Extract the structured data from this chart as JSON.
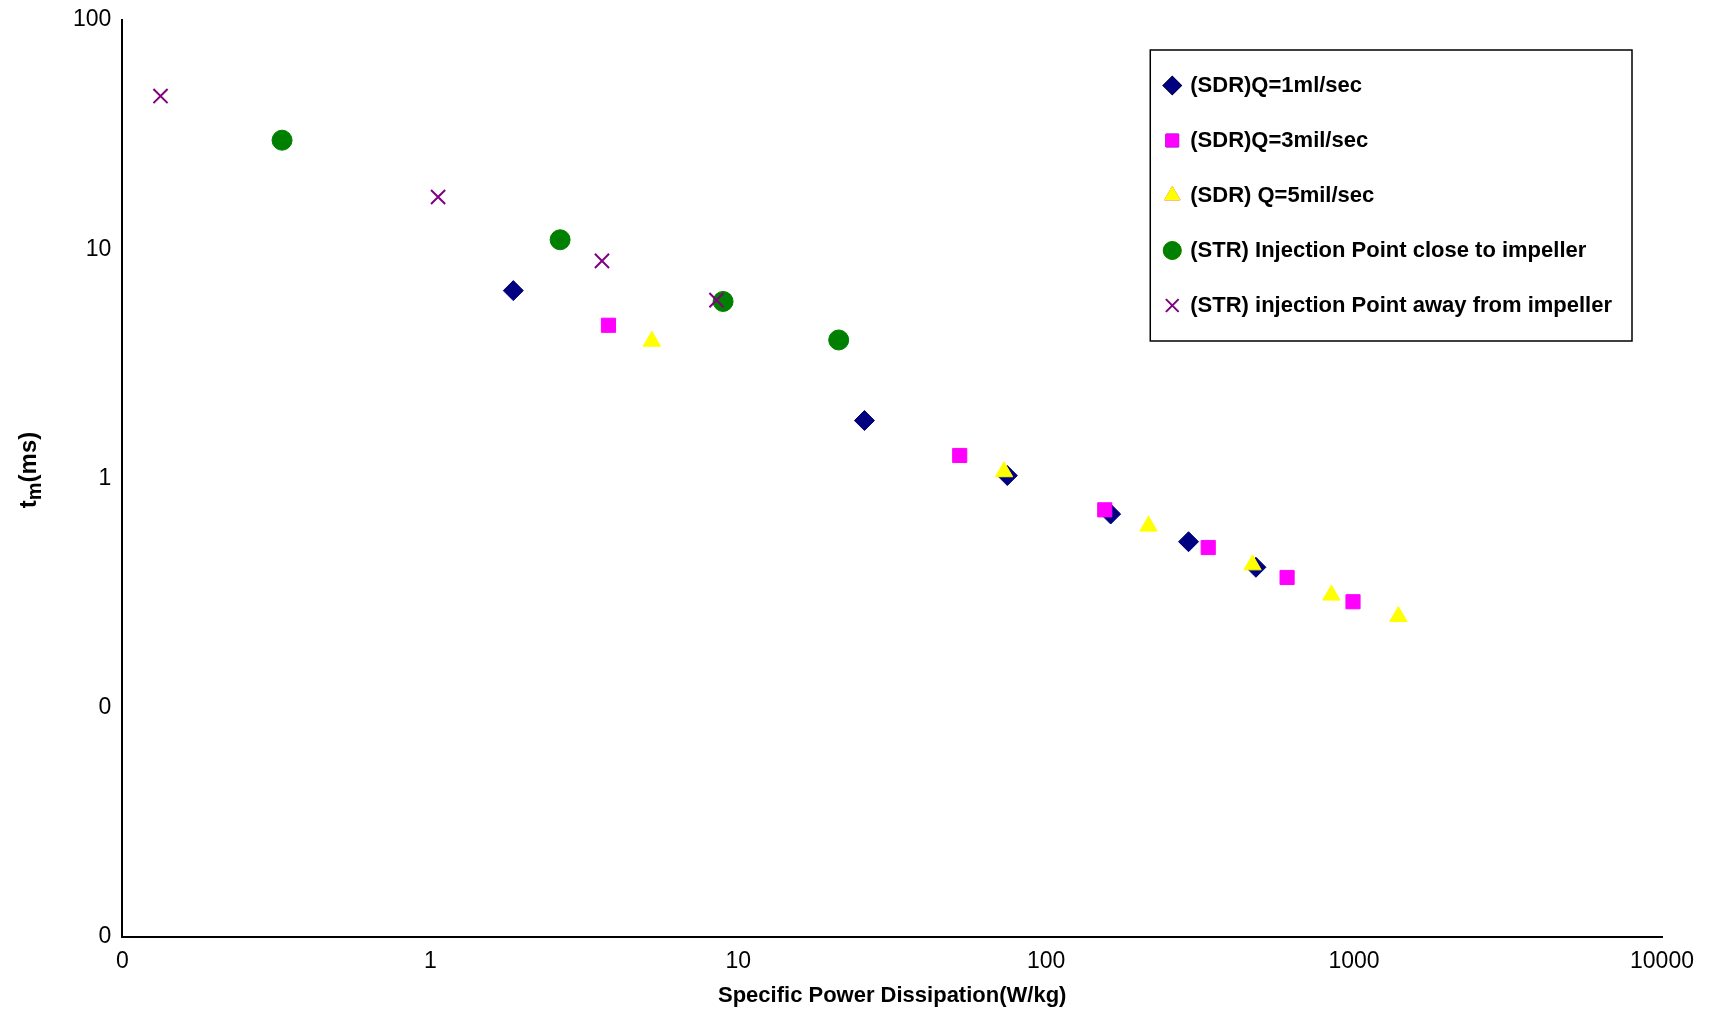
{
  "chart_data": {
    "type": "scatter",
    "xlabel": "Specific Power Dissipation(W/kg)",
    "ylabel": "t$_{m}$(ms)",
    "log": "xy",
    "grid": false,
    "legend": "top right",
    "xlim": [
      0.1,
      10000
    ],
    "xticks": [
      {
        "value": 0.1,
        "label": "0"
      },
      1,
      10,
      100,
      1000,
      10000
    ],
    "ylim": [
      0.01,
      100
    ],
    "yticks": [
      {
        "value": 0.01,
        "label": "0"
      },
      {
        "value": 0.1,
        "label": "0"
      },
      1,
      10,
      100
    ],
    "series": [
      {
        "name": "(SDR)Q=1ml/sec",
        "color": "#000080",
        "marker": "diamond",
        "x": [
          1.86,
          25.7,
          74.8,
          162,
          290,
          480
        ],
        "values": [
          6.6,
          1.79,
          1.03,
          0.7,
          0.53,
          0.41
        ]
      },
      {
        "name": "(SDR)Q=3mil/sec",
        "color": "#ff00ff",
        "marker": "square",
        "x": [
          3.79,
          52.4,
          155,
          336,
          606,
          992
        ],
        "values": [
          4.66,
          1.26,
          0.73,
          0.5,
          0.37,
          0.29
        ]
      },
      {
        "name": "(SDR) Q=5mil/sec",
        "color": "#ffff00",
        "marker": "triangle",
        "x": [
          5.24,
          73,
          215,
          468,
          844,
          1393
        ],
        "values": [
          3.97,
          1.07,
          0.62,
          0.42,
          0.31,
          0.25
        ]
      },
      {
        "name": "(STR) Injection Point close to impeller",
        "color": "#008000",
        "marker": "circle",
        "x": [
          0.33,
          2.64,
          8.93,
          21.2
        ],
        "values": [
          29.9,
          11.0,
          5.92,
          4.02
        ]
      },
      {
        "name": "(STR) injection Point away from impeller",
        "color": "#800080",
        "marker": "cross",
        "x": [
          0.133,
          1.06,
          3.61,
          8.5
        ],
        "values": [
          46.6,
          16.9,
          8.9,
          6.0
        ]
      }
    ]
  }
}
